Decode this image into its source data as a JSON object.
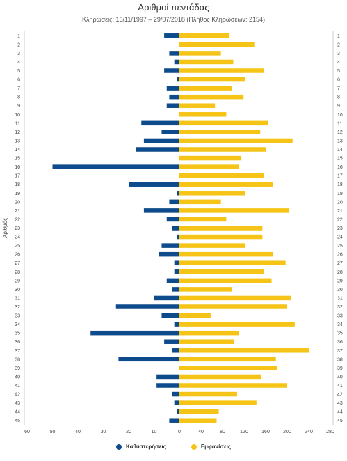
{
  "chart_data": {
    "type": "bar",
    "orientation": "horizontal",
    "title": "Αριθμοί πεντάδας",
    "subtitle": "Κληρώσεις: 16/11/1997 – 29/07/2018 (Πλήθος Κληρώσεων: 2154)",
    "ylabel": "Αριθμός",
    "categories": [
      "1",
      "2",
      "3",
      "4",
      "5",
      "6",
      "7",
      "8",
      "9",
      "10",
      "11",
      "12",
      "13",
      "14",
      "15",
      "16",
      "17",
      "18",
      "19",
      "20",
      "21",
      "22",
      "23",
      "24",
      "25",
      "26",
      "27",
      "28",
      "29",
      "30",
      "31",
      "32",
      "33",
      "34",
      "35",
      "36",
      "37",
      "38",
      "39",
      "40",
      "41",
      "42",
      "43",
      "44",
      "45"
    ],
    "left_axis": {
      "ticks": [
        "60",
        "50",
        "40",
        "30",
        "20",
        "10",
        "0"
      ],
      "range": [
        0,
        60
      ]
    },
    "right_axis": {
      "ticks": [
        "0",
        "40",
        "80",
        "120",
        "160",
        "200",
        "240",
        "280"
      ],
      "range": [
        0,
        280
      ]
    },
    "series": [
      {
        "name": "Καθυστερήσεις",
        "color": "#0d4b8c",
        "axis": "left",
        "values": [
          6,
          0,
          4,
          2,
          6,
          1,
          5,
          4,
          5,
          0,
          15,
          7,
          14,
          17,
          0,
          50,
          0,
          20,
          1,
          4,
          14,
          5,
          3,
          1,
          7,
          8,
          2,
          2,
          5,
          3,
          10,
          25,
          7,
          2,
          35,
          6,
          3,
          24,
          0,
          9,
          9,
          3,
          2,
          1,
          4
        ]
      },
      {
        "name": "Εμφανίσεις",
        "color": "#f6c417",
        "axis": "right",
        "values": [
          93,
          139,
          77,
          100,
          157,
          122,
          97,
          119,
          66,
          87,
          164,
          150,
          210,
          161,
          115,
          111,
          157,
          174,
          122,
          77,
          204,
          87,
          154,
          154,
          122,
          174,
          197,
          157,
          171,
          97,
          207,
          200,
          58,
          214,
          111,
          101,
          240,
          179,
          182,
          151,
          199,
          107,
          143,
          73,
          69
        ]
      }
    ],
    "legend_position": "bottom-center",
    "grid": false
  }
}
